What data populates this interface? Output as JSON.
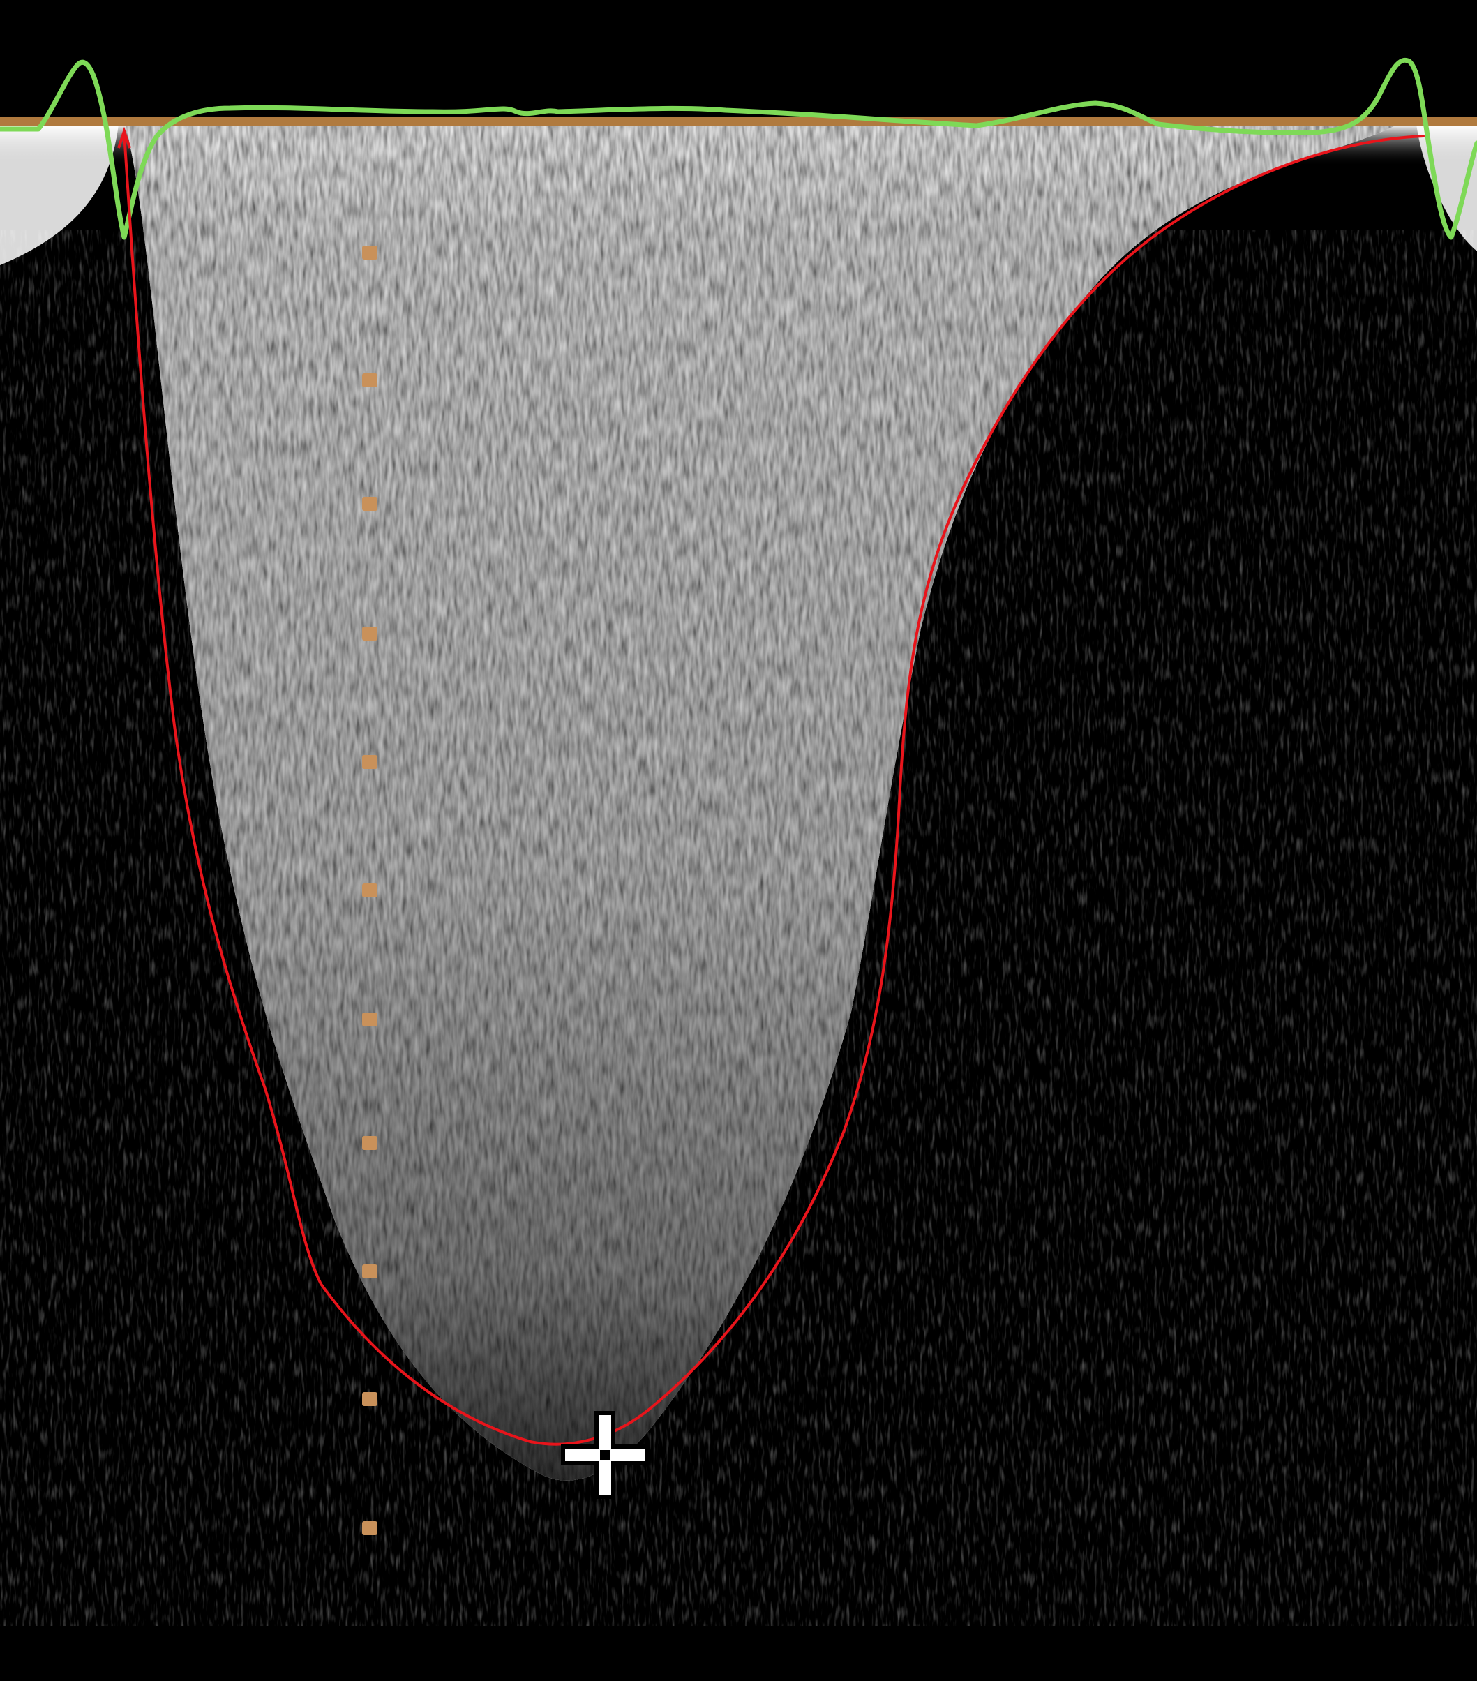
{
  "image": {
    "kind": "spectral-doppler-trace",
    "colors": {
      "background": "#000000",
      "spectrum": "#d9d9d9",
      "baseline": "#b07a3e",
      "ecg_trace": "#7ed957",
      "envelope_trace": "#e8141b",
      "depth_markers": "#c9915a",
      "crosshair": "#ffffff"
    },
    "overlays": {
      "ecg_trace": "ecg-trace",
      "envelope_trace": "velocity-envelope-trace",
      "depth_markers": "depth-marker",
      "cursor": "crosshair-icon"
    }
  }
}
